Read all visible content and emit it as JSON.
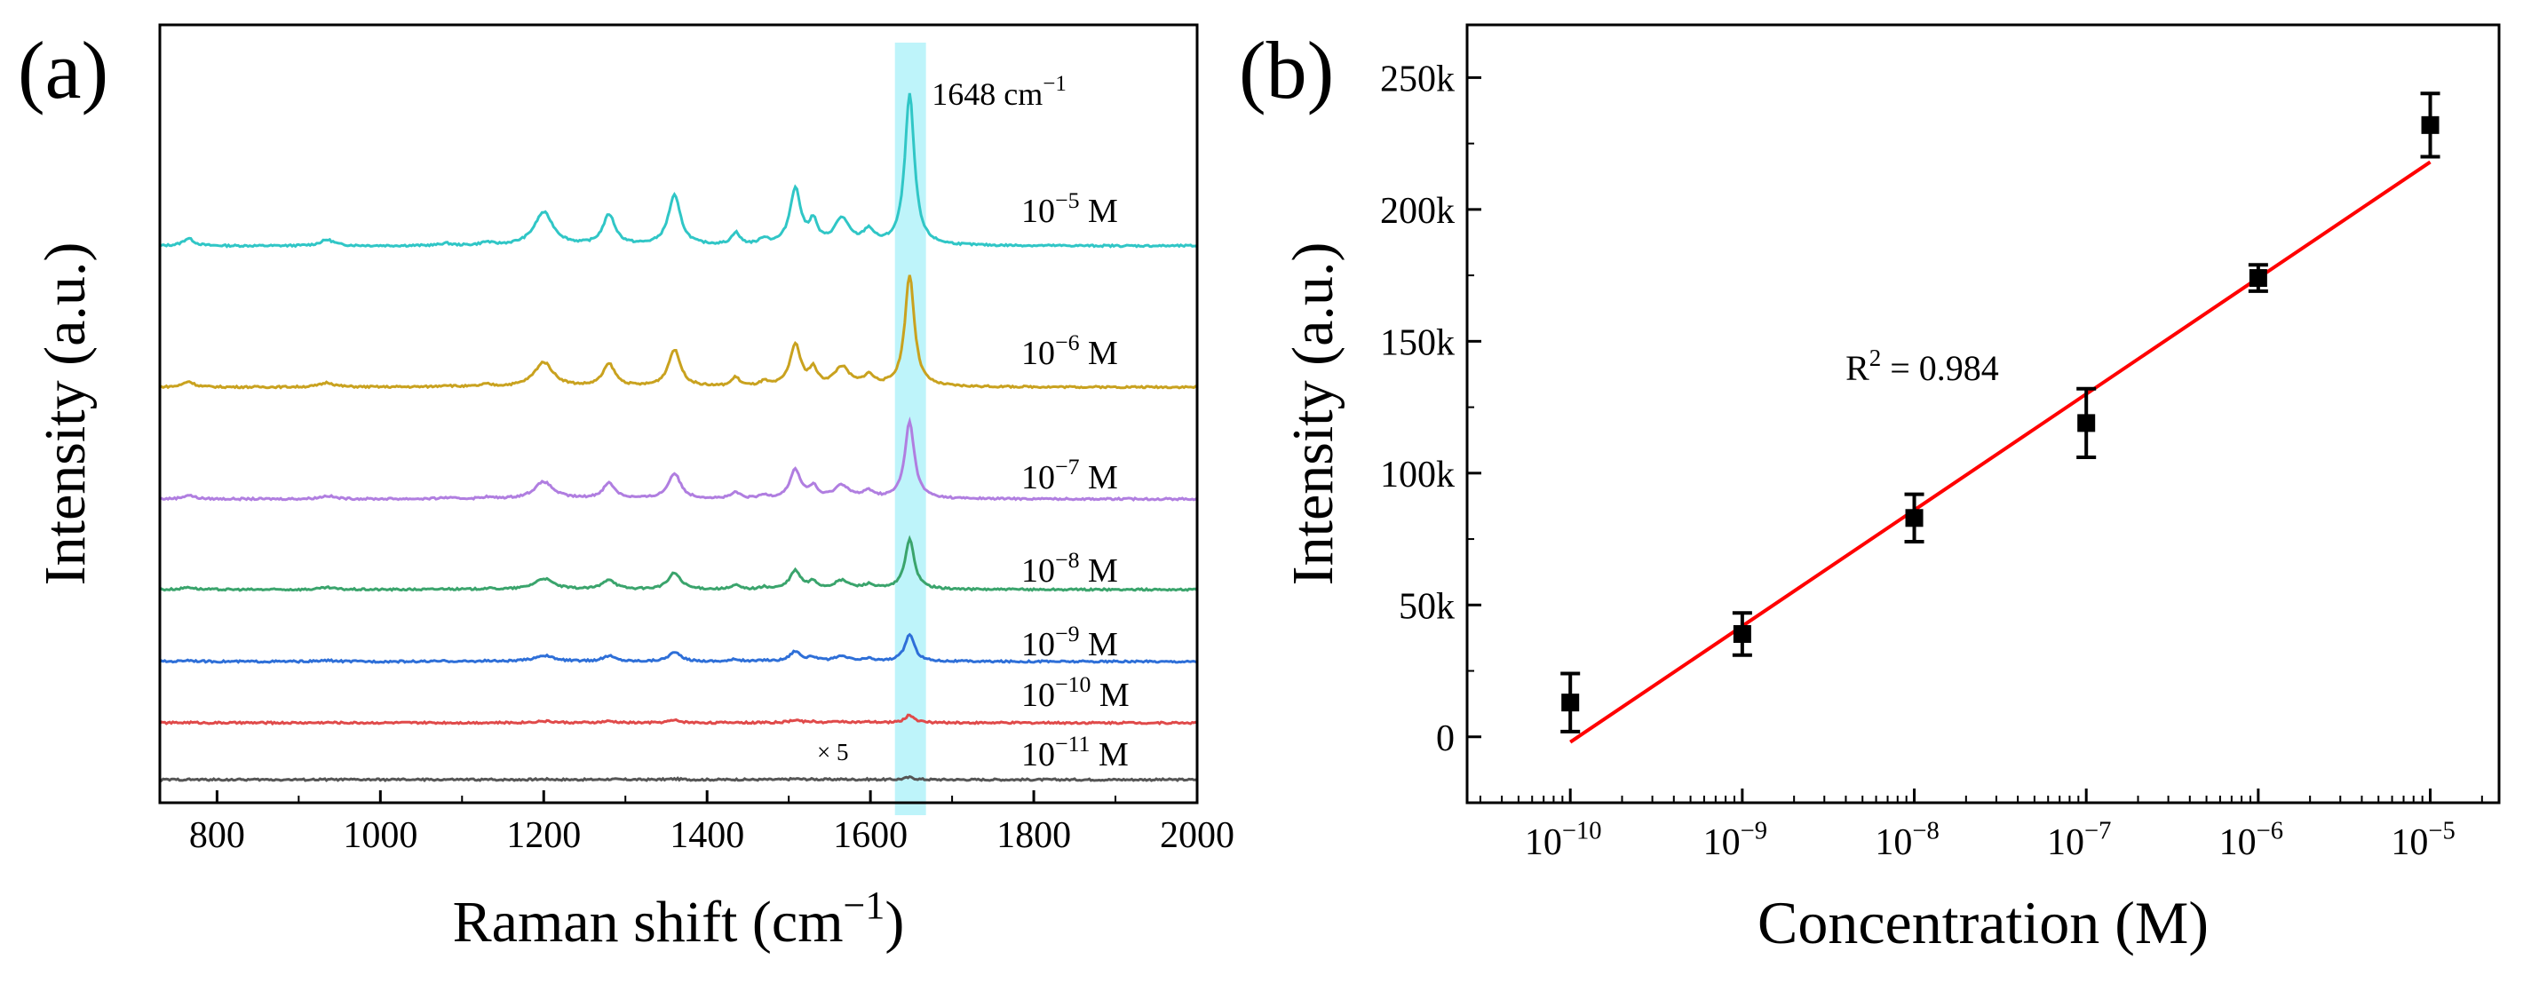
{
  "chart_data": [
    {
      "panel_label": "(a)",
      "type": "line",
      "xlabel_main": "Raman shift (cm",
      "xlabel_sup": "−1",
      "xlabel_close": ")",
      "ylabel": "Intensity (a.u.)",
      "xlim": [
        730,
        2000
      ],
      "xticks": [
        800,
        1000,
        1200,
        1400,
        1600,
        1800,
        2000
      ],
      "y_ticks_shown": false,
      "highlight_band": {
        "from": 1630,
        "to": 1668,
        "color": "#a8f0f8"
      },
      "peak_label_main": "1648 cm",
      "peak_label_sup": "−1",
      "peak_label_x": 1648,
      "peaks": [
        {
          "x": 765,
          "h": 0.05,
          "w": 8
        },
        {
          "x": 935,
          "h": 0.04,
          "w": 10
        },
        {
          "x": 1080,
          "h": 0.015,
          "w": 8
        },
        {
          "x": 1130,
          "h": 0.02,
          "w": 8
        },
        {
          "x": 1200,
          "h": 0.22,
          "w": 14
        },
        {
          "x": 1280,
          "h": 0.2,
          "w": 9
        },
        {
          "x": 1360,
          "h": 0.33,
          "w": 9
        },
        {
          "x": 1435,
          "h": 0.08,
          "w": 6
        },
        {
          "x": 1470,
          "h": 0.04,
          "w": 6
        },
        {
          "x": 1508,
          "h": 0.37,
          "w": 8
        },
        {
          "x": 1530,
          "h": 0.14,
          "w": 6
        },
        {
          "x": 1565,
          "h": 0.17,
          "w": 11
        },
        {
          "x": 1598,
          "h": 0.09,
          "w": 8
        },
        {
          "x": 1648,
          "h": 1.0,
          "w": 7
        }
      ],
      "series": [
        {
          "name": "10⁻⁵ M",
          "mantissa": "10",
          "exp": "−5",
          "unit": "M",
          "color": "#30c6c6",
          "baseline": 0,
          "peak_height": 1.0
        },
        {
          "name": "10⁻⁶ M",
          "mantissa": "10",
          "exp": "−6",
          "unit": "M",
          "color": "#c9a21f",
          "baseline": 0,
          "peak_height": 0.74
        },
        {
          "name": "10⁻⁷ M",
          "mantissa": "10",
          "exp": "−7",
          "unit": "M",
          "color": "#b07ee0",
          "baseline": 0,
          "peak_height": 0.51
        },
        {
          "name": "10⁻⁸ M",
          "mantissa": "10",
          "exp": "−8",
          "unit": "M",
          "color": "#3aa46c",
          "baseline": 0,
          "peak_height": 0.33
        },
        {
          "name": "10⁻⁹ M",
          "mantissa": "10",
          "exp": "−9",
          "unit": "M",
          "color": "#2e6fd8",
          "baseline": 0,
          "peak_height": 0.18
        },
        {
          "name": "10⁻¹⁰ M",
          "mantissa": "10",
          "exp": "−10",
          "unit": "M",
          "color": "#e04a4a",
          "baseline": 0,
          "peak_height": 0.05
        },
        {
          "name": "10⁻¹¹ M",
          "mantissa": "10",
          "exp": "−11",
          "unit": "M",
          "color": "#555555",
          "baseline": 0,
          "peak_height": 0.015
        }
      ],
      "annotation_x5": "× 5"
    },
    {
      "panel_label": "(b)",
      "type": "scatter",
      "xlabel": "Concentration (M)",
      "ylabel": "Intensity (a.u.)",
      "x_scale": "log10",
      "xlim_log": [
        -10.6,
        -4.6
      ],
      "xticks_log": [
        -10,
        -9,
        -8,
        -7,
        -6,
        -5
      ],
      "xtick_base": "10",
      "xtick_exps": [
        "−10",
        "−9",
        "−8",
        "−7",
        "−6",
        "−5"
      ],
      "ylim": [
        -25000,
        270000
      ],
      "yticks": [
        0,
        50000,
        100000,
        150000,
        200000,
        250000
      ],
      "ytick_labels": [
        "0",
        "50k",
        "100k",
        "150k",
        "200k",
        "250k"
      ],
      "points": [
        {
          "log_x": -10,
          "y": 13000,
          "err": 11000
        },
        {
          "log_x": -9,
          "y": 39000,
          "err": 8000
        },
        {
          "log_x": -8,
          "y": 83000,
          "err": 9000
        },
        {
          "log_x": -7,
          "y": 119000,
          "err": 13000
        },
        {
          "log_x": -6,
          "y": 174000,
          "err": 5000
        },
        {
          "log_x": -5,
          "y": 232000,
          "err": 12000
        }
      ],
      "fit": {
        "log_x": [
          -10,
          -5
        ],
        "y": [
          -2000,
          218000
        ],
        "color": "#ff0000"
      },
      "r2_label_main": "R",
      "r2_label_sup": "2",
      "r2_label_value": " = 0.984",
      "r2_position_log_x": -8.4,
      "r2_position_y": 140000
    }
  ]
}
